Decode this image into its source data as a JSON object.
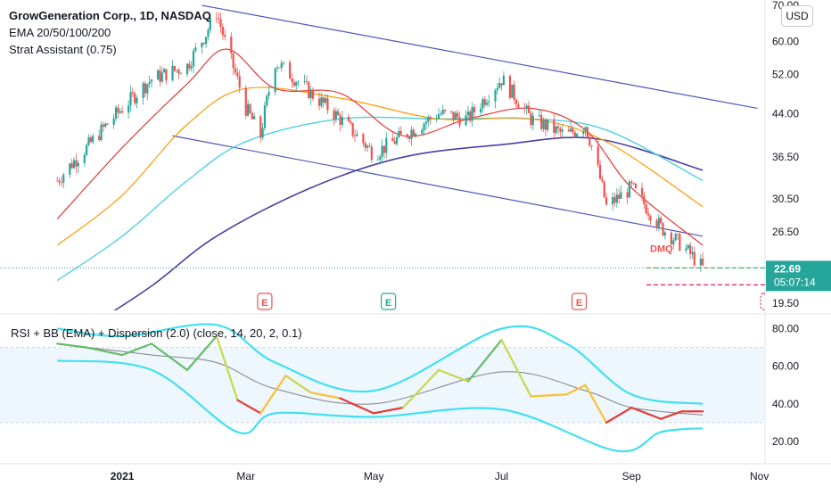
{
  "header": {
    "title": "GrowGeneration Corp., 1D, NASDAQ",
    "line2": "EMA 20/50/100/200",
    "line3": "Strat Assistant (0.75)",
    "currency_button": "USD"
  },
  "rsi_header": "RSI + BB (EMA) + Dispersion (2.0) (close, 14, 20, 2, 0.1)",
  "last_price": "22.69",
  "countdown": "05:07:14",
  "dmq_label": "DMQ",
  "earnings_marker": "E",
  "colors": {
    "up": "#26a69a",
    "down": "#ef5350",
    "ema20": "#e53935",
    "ema50": "#ff9800",
    "ema100": "#4dd0e1",
    "ema200": "#4a3fa3",
    "channel": "#5057b8",
    "bb": "#40e0f0",
    "bb_basis": "#808080",
    "rsi_fill": "#e3f2fd",
    "earnings": "#ef5350",
    "earnings_green": "#26a69a",
    "earnings_pink": "#e91e63"
  },
  "chart_data": [
    {
      "type": "line",
      "name": "price",
      "y_scale": "log",
      "ylim": [
        19.5,
        70.0
      ],
      "y_ticks": [
        "70.00",
        "60.00",
        "52.00",
        "44.00",
        "36.50",
        "30.50",
        "26.50",
        "19.50"
      ],
      "x_ticks": [
        "2021",
        "Mar",
        "May",
        "Jul",
        "Sep",
        "Nov"
      ],
      "close": [
        {
          "x": "2020-12-01",
          "y": 33.0
        },
        {
          "x": "2020-12-15",
          "y": 38.0
        },
        {
          "x": "2021-01-01",
          "y": 45.0
        },
        {
          "x": "2021-01-15",
          "y": 51.0
        },
        {
          "x": "2021-02-01",
          "y": 54.0
        },
        {
          "x": "2021-02-10",
          "y": 62.0
        },
        {
          "x": "2021-02-15",
          "y": 68.0
        },
        {
          "x": "2021-02-20",
          "y": 58.0
        },
        {
          "x": "2021-03-01",
          "y": 45.0
        },
        {
          "x": "2021-03-08",
          "y": 40.0
        },
        {
          "x": "2021-03-15",
          "y": 55.0
        },
        {
          "x": "2021-04-01",
          "y": 48.0
        },
        {
          "x": "2021-04-15",
          "y": 43.0
        },
        {
          "x": "2021-05-01",
          "y": 37.0
        },
        {
          "x": "2021-05-15",
          "y": 40.0
        },
        {
          "x": "2021-06-01",
          "y": 44.0
        },
        {
          "x": "2021-06-15",
          "y": 43.0
        },
        {
          "x": "2021-07-01",
          "y": 51.0
        },
        {
          "x": "2021-07-15",
          "y": 43.0
        },
        {
          "x": "2021-08-01",
          "y": 40.0
        },
        {
          "x": "2021-08-10",
          "y": 42.0
        },
        {
          "x": "2021-08-20",
          "y": 29.5
        },
        {
          "x": "2021-09-01",
          "y": 32.0
        },
        {
          "x": "2021-09-15",
          "y": 27.0
        },
        {
          "x": "2021-09-25",
          "y": 25.0
        },
        {
          "x": "2021-10-05",
          "y": 22.69
        }
      ],
      "ema20": [
        {
          "x": "2020-12-01",
          "y": 28.0
        },
        {
          "x": "2021-01-01",
          "y": 38.0
        },
        {
          "x": "2021-02-01",
          "y": 50.0
        },
        {
          "x": "2021-02-20",
          "y": 58.0
        },
        {
          "x": "2021-03-15",
          "y": 49.0
        },
        {
          "x": "2021-04-15",
          "y": 48.0
        },
        {
          "x": "2021-05-15",
          "y": 40.0
        },
        {
          "x": "2021-06-15",
          "y": 43.0
        },
        {
          "x": "2021-07-15",
          "y": 45.0
        },
        {
          "x": "2021-08-10",
          "y": 41.0
        },
        {
          "x": "2021-09-01",
          "y": 32.0
        },
        {
          "x": "2021-10-05",
          "y": 25.0
        }
      ],
      "ema50": [
        {
          "x": "2020-12-01",
          "y": 25.0
        },
        {
          "x": "2021-01-01",
          "y": 31.0
        },
        {
          "x": "2021-02-01",
          "y": 42.0
        },
        {
          "x": "2021-03-01",
          "y": 49.0
        },
        {
          "x": "2021-04-15",
          "y": 47.0
        },
        {
          "x": "2021-06-01",
          "y": 43.0
        },
        {
          "x": "2021-07-15",
          "y": 43.0
        },
        {
          "x": "2021-08-20",
          "y": 39.0
        },
        {
          "x": "2021-10-05",
          "y": 29.5
        }
      ],
      "ema100": [
        {
          "x": "2020-12-01",
          "y": 21.5
        },
        {
          "x": "2021-01-01",
          "y": 26.0
        },
        {
          "x": "2021-02-01",
          "y": 33.0
        },
        {
          "x": "2021-03-01",
          "y": 39.0
        },
        {
          "x": "2021-04-15",
          "y": 43.0
        },
        {
          "x": "2021-06-01",
          "y": 43.0
        },
        {
          "x": "2021-07-15",
          "y": 43.0
        },
        {
          "x": "2021-08-20",
          "y": 41.0
        },
        {
          "x": "2021-10-05",
          "y": 33.0
        }
      ],
      "ema200": [
        {
          "x": "2020-12-15",
          "y": 17.5
        },
        {
          "x": "2021-01-15",
          "y": 21.0
        },
        {
          "x": "2021-02-15",
          "y": 26.0
        },
        {
          "x": "2021-04-01",
          "y": 32.0
        },
        {
          "x": "2021-05-15",
          "y": 36.5
        },
        {
          "x": "2021-07-01",
          "y": 38.5
        },
        {
          "x": "2021-08-15",
          "y": 39.5
        },
        {
          "x": "2021-10-05",
          "y": 34.5
        }
      ],
      "channel_upper": [
        {
          "x": "2021-02-08",
          "y": 70.0
        },
        {
          "x": "2021-10-31",
          "y": 45.0
        }
      ],
      "channel_lower": [
        {
          "x": "2021-01-25",
          "y": 40.0
        },
        {
          "x": "2021-10-05",
          "y": 26.0
        }
      ],
      "earnings_dates": [
        "2021-03-10",
        "2021-05-08",
        "2021-08-07",
        "2021-11-05"
      ]
    },
    {
      "type": "line",
      "name": "RSI",
      "ylim": [
        10,
        85
      ],
      "y_ticks": [
        "80.00",
        "60.00",
        "40.00",
        "20.00"
      ],
      "band": [
        30,
        70
      ],
      "rsi": [
        {
          "x": "2020-12-01",
          "y": 72
        },
        {
          "x": "2020-12-15",
          "y": 70
        },
        {
          "x": "2021-01-01",
          "y": 66
        },
        {
          "x": "2021-01-15",
          "y": 72
        },
        {
          "x": "2021-02-01",
          "y": 58
        },
        {
          "x": "2021-02-15",
          "y": 76
        },
        {
          "x": "2021-02-25",
          "y": 42
        },
        {
          "x": "2021-03-08",
          "y": 35
        },
        {
          "x": "2021-03-20",
          "y": 55
        },
        {
          "x": "2021-04-01",
          "y": 46
        },
        {
          "x": "2021-04-15",
          "y": 43
        },
        {
          "x": "2021-05-01",
          "y": 35
        },
        {
          "x": "2021-05-15",
          "y": 38
        },
        {
          "x": "2021-06-01",
          "y": 58
        },
        {
          "x": "2021-06-15",
          "y": 52
        },
        {
          "x": "2021-07-01",
          "y": 74
        },
        {
          "x": "2021-07-15",
          "y": 44
        },
        {
          "x": "2021-08-01",
          "y": 45
        },
        {
          "x": "2021-08-10",
          "y": 50
        },
        {
          "x": "2021-08-20",
          "y": 30
        },
        {
          "x": "2021-09-01",
          "y": 38
        },
        {
          "x": "2021-09-15",
          "y": 32
        },
        {
          "x": "2021-09-25",
          "y": 36
        },
        {
          "x": "2021-10-05",
          "y": 36
        }
      ],
      "bb_upper": [
        {
          "x": "2020-12-01",
          "y": 80
        },
        {
          "x": "2021-01-01",
          "y": 76
        },
        {
          "x": "2021-02-15",
          "y": 82
        },
        {
          "x": "2021-03-15",
          "y": 62
        },
        {
          "x": "2021-05-01",
          "y": 47
        },
        {
          "x": "2021-07-01",
          "y": 80
        },
        {
          "x": "2021-08-01",
          "y": 72
        },
        {
          "x": "2021-09-01",
          "y": 45
        },
        {
          "x": "2021-10-05",
          "y": 40
        }
      ],
      "bb_basis": [
        {
          "x": "2020-12-01",
          "y": 72
        },
        {
          "x": "2021-01-15",
          "y": 66
        },
        {
          "x": "2021-02-15",
          "y": 62
        },
        {
          "x": "2021-03-15",
          "y": 48
        },
        {
          "x": "2021-05-01",
          "y": 40
        },
        {
          "x": "2021-07-01",
          "y": 57
        },
        {
          "x": "2021-08-10",
          "y": 47
        },
        {
          "x": "2021-09-01",
          "y": 38
        },
        {
          "x": "2021-10-05",
          "y": 34
        }
      ],
      "bb_lower": [
        {
          "x": "2020-12-01",
          "y": 63
        },
        {
          "x": "2021-01-15",
          "y": 58
        },
        {
          "x": "2021-02-25",
          "y": 25
        },
        {
          "x": "2021-03-15",
          "y": 35
        },
        {
          "x": "2021-05-01",
          "y": 33
        },
        {
          "x": "2021-07-01",
          "y": 37
        },
        {
          "x": "2021-08-25",
          "y": 15
        },
        {
          "x": "2021-09-15",
          "y": 25
        },
        {
          "x": "2021-10-05",
          "y": 27
        }
      ]
    }
  ]
}
